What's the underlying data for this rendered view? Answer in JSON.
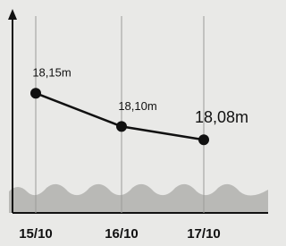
{
  "chart_data": {
    "type": "line",
    "categories": [
      "15/10",
      "16/10",
      "17/10"
    ],
    "values": [
      18.15,
      18.1,
      18.08
    ],
    "value_labels": [
      "18,15m",
      "18,10m",
      "18,08m"
    ],
    "color": "#111111",
    "ylim": [
      17.97,
      18.27
    ],
    "grid": true
  }
}
